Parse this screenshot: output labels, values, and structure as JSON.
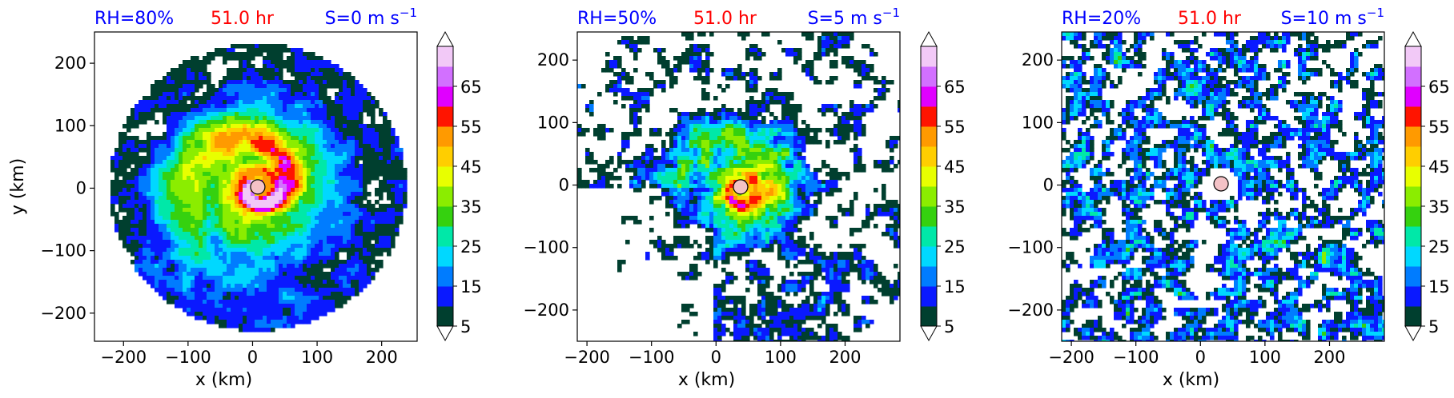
{
  "figure": {
    "colorbar": {
      "levels": [
        5,
        10,
        15,
        20,
        25,
        30,
        35,
        40,
        45,
        50,
        55,
        60,
        65,
        70
      ],
      "tick_labels": [
        "5",
        "15",
        "25",
        "35",
        "45",
        "55",
        "65"
      ],
      "colors": [
        "#003f2f",
        "#0a19ff",
        "#007cff",
        "#00d8ff",
        "#00e8a8",
        "#35d10f",
        "#8bed00",
        "#e8ff00",
        "#ffce00",
        "#ff9a00",
        "#ff1400",
        "#e000ff",
        "#d270ff",
        "#f2c9f7"
      ],
      "extend": "both"
    },
    "center_marker_color": "#f4c2c6",
    "title_colors": {
      "left": "#0000ff",
      "center": "#ff0000",
      "right": "#0000ff"
    }
  },
  "chart_data": [
    {
      "type": "heatmap",
      "title_left": "RH=80%",
      "title_center": "51.0 hr",
      "title_right": "S=0 m s",
      "title_right_sup": "−1",
      "xlabel": "x (km)",
      "ylabel": "y (km)",
      "xlim": [
        -245,
        255
      ],
      "ylim": [
        -245,
        250
      ],
      "xticks": [
        -200,
        -100,
        0,
        100,
        200
      ],
      "yticks": [
        -200,
        -100,
        0,
        100,
        200
      ],
      "xtick_labels": [
        "−200",
        "−100",
        "0",
        "100",
        "200"
      ],
      "ytick_labels": [
        "−200",
        "−100",
        "0",
        "100",
        "200"
      ],
      "center": [
        8,
        2
      ],
      "storm": "compact spiral storm centered near the origin, extensive rainbands"
    },
    {
      "type": "heatmap",
      "title_left": "RH=50%",
      "title_center": "51.0 hr",
      "title_right": "S=5 m s",
      "title_right_sup": "−1",
      "xlabel": "x (km)",
      "ylabel": "",
      "xlim": [
        -215,
        285
      ],
      "ylim": [
        -250,
        245
      ],
      "xticks": [
        -200,
        -100,
        0,
        100,
        200
      ],
      "yticks": [
        -200,
        -100,
        0,
        100,
        200
      ],
      "xtick_labels": [
        "−200",
        "−100",
        "0",
        "100",
        "200"
      ],
      "ytick_labels": [
        "−200",
        "−100",
        "0",
        "100",
        "200"
      ],
      "center": [
        38,
        -3
      ],
      "storm": "spiral storm shifted east with scattered outer cells"
    },
    {
      "type": "heatmap",
      "title_left": "RH=20%",
      "title_center": "51.0 hr",
      "title_right": "S=10 m s",
      "title_right_sup": "−1",
      "xlabel": "x (km)",
      "ylabel": "",
      "xlim": [
        -215,
        285
      ],
      "ylim": [
        -250,
        245
      ],
      "xticks": [
        -200,
        -100,
        0,
        100,
        200
      ],
      "yticks": [
        -200,
        -100,
        0,
        100,
        200
      ],
      "xtick_labels": [
        "−200",
        "−100",
        "0",
        "100",
        "200"
      ],
      "ytick_labels": [
        "−200",
        "−100",
        "0",
        "100",
        "200"
      ],
      "center": [
        32,
        2
      ],
      "storm": "disorganized scattered convection, no eyewall"
    }
  ]
}
